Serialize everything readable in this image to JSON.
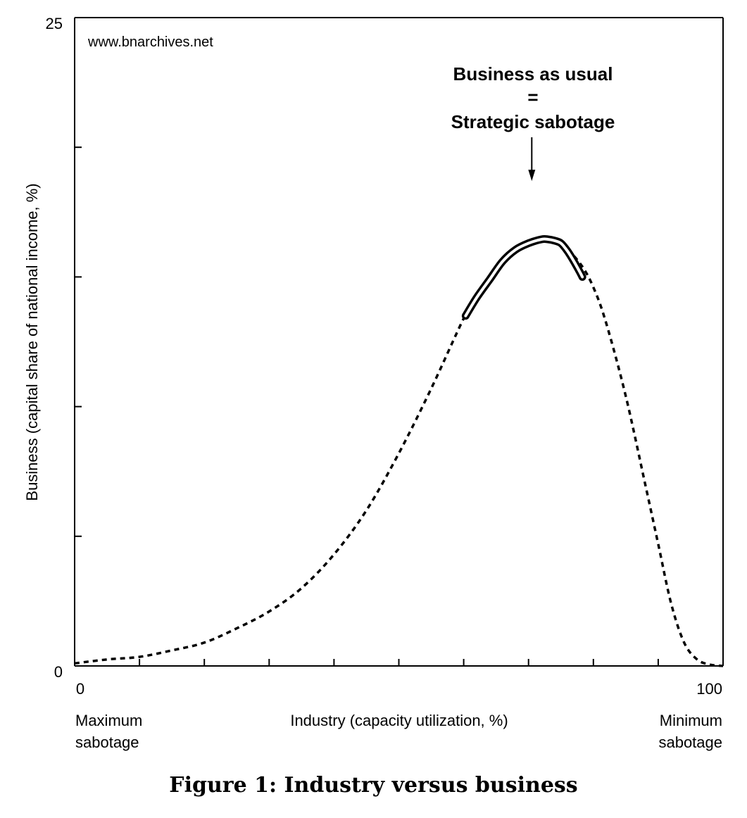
{
  "watermark": "www.bnarchives.net",
  "figure_caption": "Figure 1: Industry versus business",
  "chart_data": {
    "type": "line",
    "title": "",
    "xlabel": "Industry (capacity utilization, %)",
    "ylabel": "Business (capital share of national income, %)",
    "xlim": [
      0,
      100
    ],
    "ylim": [
      0,
      25
    ],
    "x_tick_labels": [
      "0",
      "100"
    ],
    "y_tick_labels": [
      "0",
      "25"
    ],
    "x_ticks": [
      0,
      10,
      20,
      30,
      40,
      50,
      60,
      70,
      80,
      90,
      100
    ],
    "y_ticks": [
      0,
      5,
      10,
      15,
      20,
      25
    ],
    "x_end_labels": {
      "left": [
        "Maximum",
        "sabotage"
      ],
      "right": [
        "Minimum",
        "sabotage"
      ]
    },
    "grid": false,
    "series": [
      {
        "style": "dashed",
        "x": [
          0,
          5,
          10,
          15,
          20,
          25,
          30,
          35,
          40,
          45,
          50,
          55,
          60,
          62,
          66,
          70,
          73,
          75,
          78,
          80,
          82,
          85,
          88,
          90,
          92,
          94,
          96,
          98,
          100
        ],
        "y": [
          0.1,
          0.25,
          0.35,
          0.6,
          0.9,
          1.45,
          2.1,
          3.0,
          4.3,
          6.0,
          8.2,
          10.7,
          13.4,
          14.2,
          15.6,
          16.3,
          16.45,
          16.3,
          15.5,
          14.6,
          13.2,
          10.4,
          7.0,
          4.7,
          2.4,
          0.9,
          0.25,
          0.05,
          0.0
        ]
      },
      {
        "style": "double",
        "x": [
          60.3,
          62,
          64,
          66,
          68,
          70,
          72,
          73,
          74,
          75,
          76,
          77,
          78,
          78.3
        ],
        "y": [
          13.5,
          14.2,
          14.9,
          15.6,
          16.05,
          16.3,
          16.45,
          16.45,
          16.4,
          16.3,
          16.0,
          15.6,
          15.15,
          15.0
        ]
      }
    ],
    "annotations": [
      {
        "lines": [
          "Business as usual",
          "=",
          "Strategic sabotage"
        ],
        "arrow_to": [
          70.5,
          18.7
        ]
      }
    ]
  }
}
